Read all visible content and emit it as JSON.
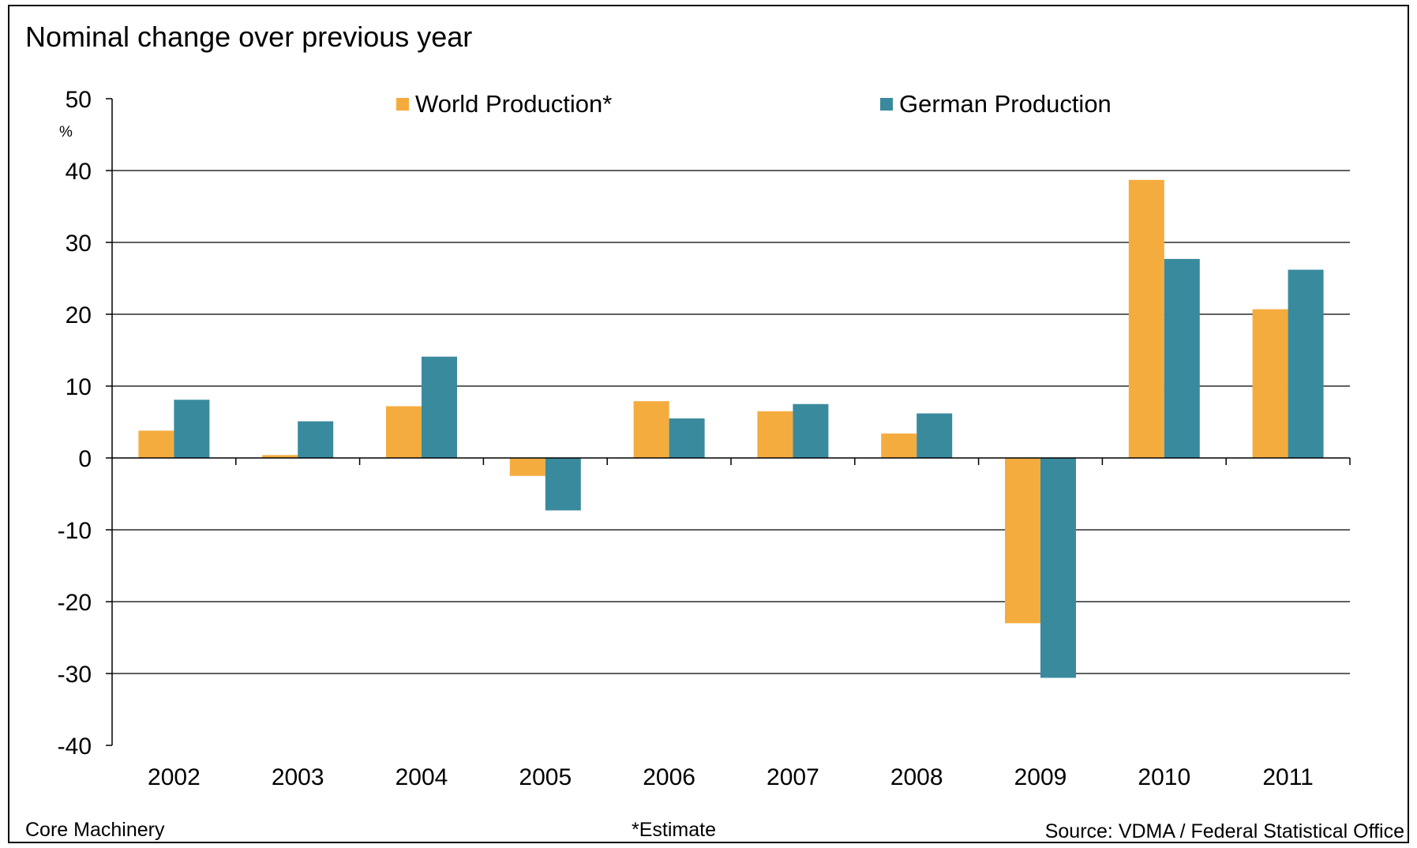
{
  "page": {
    "title": "Nominal change over previous year",
    "unit_label": "%",
    "footer_left": "Core Machinery",
    "footer_note": "*Estimate",
    "footer_source": "Source: VDMA / Federal Statistical Office"
  },
  "chart_data": {
    "type": "bar",
    "title": "Nominal change over previous year",
    "xlabel": "",
    "ylabel": "%",
    "ylim": [
      -40,
      50
    ],
    "yticks": [
      50,
      40,
      30,
      20,
      10,
      0,
      -10,
      -20,
      -30,
      -40
    ],
    "grid": true,
    "legend_position": "top",
    "categories": [
      "2002",
      "2003",
      "2004",
      "2005",
      "2006",
      "2007",
      "2008",
      "2009",
      "2010",
      "2011"
    ],
    "series": [
      {
        "name": "World Production*",
        "color": "#F5AC3F",
        "values": [
          3.8,
          0.4,
          7.2,
          -2.5,
          7.9,
          6.5,
          3.4,
          -23.0,
          38.7,
          20.7
        ]
      },
      {
        "name": "German Production",
        "color": "#3A8A9E",
        "values": [
          8.1,
          5.1,
          14.1,
          -7.3,
          5.5,
          7.5,
          6.2,
          -30.6,
          27.7,
          26.2
        ]
      }
    ]
  }
}
